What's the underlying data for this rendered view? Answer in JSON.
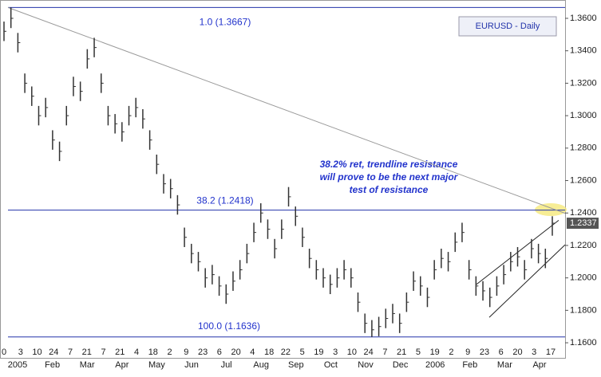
{
  "chart_data": {
    "type": "ohlc",
    "title": "EURUSD - Daily",
    "ylim": [
      1.1502,
      1.3713
    ],
    "yticks": [
      {
        "value": 1.16,
        "label": "1.1600"
      },
      {
        "value": 1.18,
        "label": "1.1800"
      },
      {
        "value": 1.2,
        "label": "1.2000"
      },
      {
        "value": 1.22,
        "label": "1.2200"
      },
      {
        "value": 1.24,
        "label": "1.2400"
      },
      {
        "value": 1.26,
        "label": "1.2600"
      },
      {
        "value": 1.28,
        "label": "1.2800"
      },
      {
        "value": 1.3,
        "label": "1.3000"
      },
      {
        "value": 1.32,
        "label": "1.3200"
      },
      {
        "value": 1.34,
        "label": "1.3400"
      },
      {
        "value": 1.36,
        "label": "1.3600"
      }
    ],
    "day_labels": [
      "0",
      "3",
      "10",
      "24",
      "7",
      "21",
      "7",
      "21",
      "4",
      "18",
      "2",
      "9",
      "23",
      "6",
      "20",
      "4",
      "18",
      "22",
      "5",
      "19",
      "3",
      "10",
      "24",
      "7",
      "21",
      "5",
      "19",
      "2",
      "9",
      "23",
      "6",
      "20",
      "3",
      "17"
    ],
    "month_labels": [
      "2005",
      "Feb",
      "Mar",
      "Apr",
      "May",
      "Jun",
      "Jul",
      "Aug",
      "Sep",
      "Oct",
      "Nov",
      "Dec",
      "2006",
      "Feb",
      "Mar",
      "Apr"
    ],
    "color": "#333333",
    "high": [
      1.358,
      1.3667,
      1.351,
      1.326,
      1.318,
      1.306,
      1.311,
      1.291,
      1.284,
      1.306,
      1.324,
      1.321,
      1.341,
      1.348,
      1.326,
      1.306,
      1.301,
      1.296,
      1.306,
      1.311,
      1.304,
      1.291,
      1.276,
      1.264,
      1.261,
      1.251,
      1.231,
      1.221,
      1.216,
      1.206,
      1.208,
      1.201,
      1.196,
      1.204,
      1.211,
      1.221,
      1.234,
      1.246,
      1.236,
      1.224,
      1.236,
      1.256,
      1.244,
      1.231,
      1.218,
      1.211,
      1.206,
      1.202,
      1.206,
      1.211,
      1.206,
      1.191,
      1.178,
      1.174,
      1.176,
      1.181,
      1.184,
      1.178,
      1.191,
      1.204,
      1.201,
      1.194,
      1.211,
      1.218,
      1.216,
      1.228,
      1.234,
      1.211,
      1.201,
      1.198,
      1.194,
      1.201,
      1.208,
      1.216,
      1.219,
      1.211,
      1.224,
      1.221,
      1.218,
      1.238
    ],
    "low": [
      1.346,
      1.354,
      1.339,
      1.314,
      1.306,
      1.294,
      1.299,
      1.279,
      1.272,
      1.294,
      1.312,
      1.309,
      1.329,
      1.336,
      1.314,
      1.294,
      1.289,
      1.284,
      1.294,
      1.299,
      1.292,
      1.279,
      1.264,
      1.252,
      1.249,
      1.239,
      1.219,
      1.209,
      1.204,
      1.194,
      1.196,
      1.189,
      1.184,
      1.192,
      1.199,
      1.209,
      1.222,
      1.234,
      1.224,
      1.212,
      1.224,
      1.244,
      1.232,
      1.219,
      1.206,
      1.199,
      1.194,
      1.19,
      1.194,
      1.199,
      1.194,
      1.179,
      1.166,
      1.1636,
      1.164,
      1.169,
      1.172,
      1.166,
      1.179,
      1.192,
      1.189,
      1.182,
      1.199,
      1.206,
      1.204,
      1.216,
      1.222,
      1.199,
      1.189,
      1.186,
      1.182,
      1.189,
      1.196,
      1.204,
      1.207,
      1.199,
      1.212,
      1.209,
      1.206,
      1.226
    ],
    "close": [
      1.352,
      1.36,
      1.345,
      1.32,
      1.312,
      1.3,
      1.305,
      1.285,
      1.278,
      1.3,
      1.318,
      1.315,
      1.335,
      1.342,
      1.32,
      1.3,
      1.295,
      1.29,
      1.3,
      1.305,
      1.298,
      1.285,
      1.27,
      1.258,
      1.255,
      1.245,
      1.225,
      1.215,
      1.21,
      1.2,
      1.202,
      1.195,
      1.19,
      1.198,
      1.205,
      1.215,
      1.228,
      1.24,
      1.23,
      1.218,
      1.23,
      1.25,
      1.238,
      1.225,
      1.212,
      1.205,
      1.2,
      1.196,
      1.2,
      1.205,
      1.2,
      1.185,
      1.172,
      1.168,
      1.17,
      1.175,
      1.178,
      1.172,
      1.185,
      1.198,
      1.195,
      1.188,
      1.205,
      1.212,
      1.21,
      1.222,
      1.228,
      1.205,
      1.195,
      1.192,
      1.188,
      1.195,
      1.202,
      1.21,
      1.213,
      1.205,
      1.218,
      1.215,
      1.212,
      1.2337
    ],
    "last_price": {
      "value": 1.2337,
      "label": "1.2337"
    },
    "levels": [
      {
        "value": 1.3667,
        "label": "1.0 (1.3667)"
      },
      {
        "value": 1.2418,
        "label": "38.2 (1.2418)"
      },
      {
        "value": 1.1636,
        "label": "100.0 (1.1636)"
      }
    ],
    "trendline": [
      1.3667,
      1.2398
    ],
    "channel_upper": [
      1.196,
      1.2355
    ],
    "channel_lower": [
      1.1757,
      1.2204
    ],
    "annotation": [
      "38.2% ret, trendline resistance",
      "will prove to be the next major",
      "test of resistance"
    ]
  }
}
